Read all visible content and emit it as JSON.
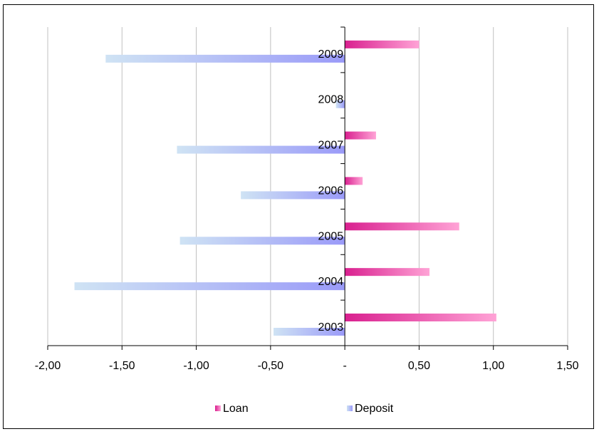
{
  "chart_data": {
    "type": "bar",
    "orientation": "horizontal",
    "categories": [
      "2003",
      "2004",
      "2005",
      "2006",
      "2007",
      "2008",
      "2009"
    ],
    "series": [
      {
        "name": "Loan",
        "values": [
          1.02,
          0.57,
          0.77,
          0.12,
          0.21,
          0.0,
          0.5
        ],
        "color": "#e0359a"
      },
      {
        "name": "Deposit",
        "values": [
          -0.48,
          -1.82,
          -1.11,
          -0.7,
          -1.13,
          -0.06,
          -1.61
        ],
        "color": "#9e9ef8"
      }
    ],
    "xlim": [
      -2.0,
      1.5
    ],
    "xticks": [
      -2.0,
      -1.5,
      -1.0,
      -0.5,
      0,
      0.5,
      1.0,
      1.5
    ],
    "xtick_labels": [
      "-2,00",
      "-1,50",
      "-1,00",
      "-0,50",
      "-",
      "0,50",
      "1,00",
      "1,50"
    ],
    "grid": "vertical",
    "legend": "bottom",
    "title": "",
    "xlabel": "",
    "ylabel": ""
  }
}
